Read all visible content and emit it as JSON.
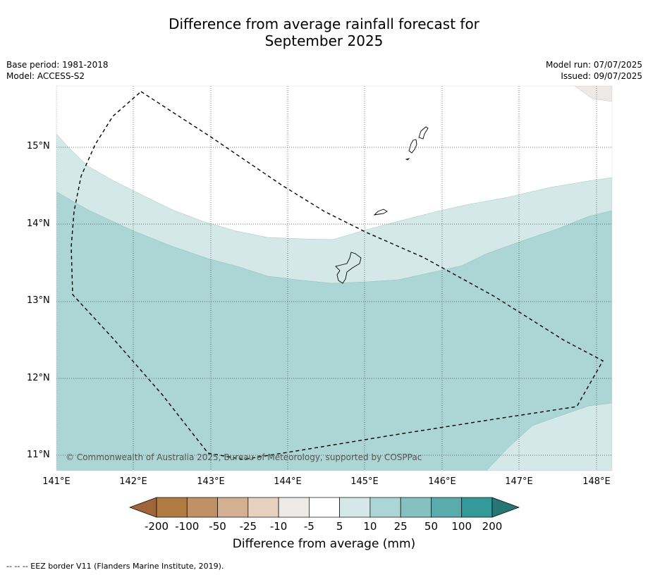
{
  "title_line1": "Difference from average rainfall forecast for",
  "title_line2": "September 2025",
  "base_period": "Base period: 1981-2018",
  "model": "Model: ACCESS-S2",
  "model_run": "Model run: 07/07/2025",
  "issued": "Issued: 09/07/2025",
  "lat_labels": [
    "15°N",
    "14°N",
    "13°N",
    "12°N",
    "11°N"
  ],
  "lon_labels": [
    "141°E",
    "142°E",
    "143°E",
    "144°E",
    "145°E",
    "146°E",
    "147°E",
    "148°E"
  ],
  "copyright": "© Commonwealth of Australia 2025, Bureau of Meteorology, supported by COSPPac",
  "colorbar": {
    "ticks": [
      "-200",
      "-100",
      "-50",
      "-25",
      "-10",
      "-5",
      "5",
      "10",
      "25",
      "50",
      "100",
      "200"
    ],
    "colors": [
      "#a0663a",
      "#b27a43",
      "#c09066",
      "#d3b091",
      "#e6d0be",
      "#ede9e6",
      "#ffffff",
      "#d4e8e7",
      "#acd6d5",
      "#86c0c1",
      "#5aabac",
      "#349999",
      "#277676"
    ],
    "label": "Difference from average (mm)"
  },
  "footnote": "--  --  -- EEZ border V11 (Flanders Marine Institute, 2019).",
  "map_colors": {
    "light_teal": "#d4e8e7",
    "mid_teal": "#acd6d5",
    "light_brown": "#ede9e6"
  }
}
